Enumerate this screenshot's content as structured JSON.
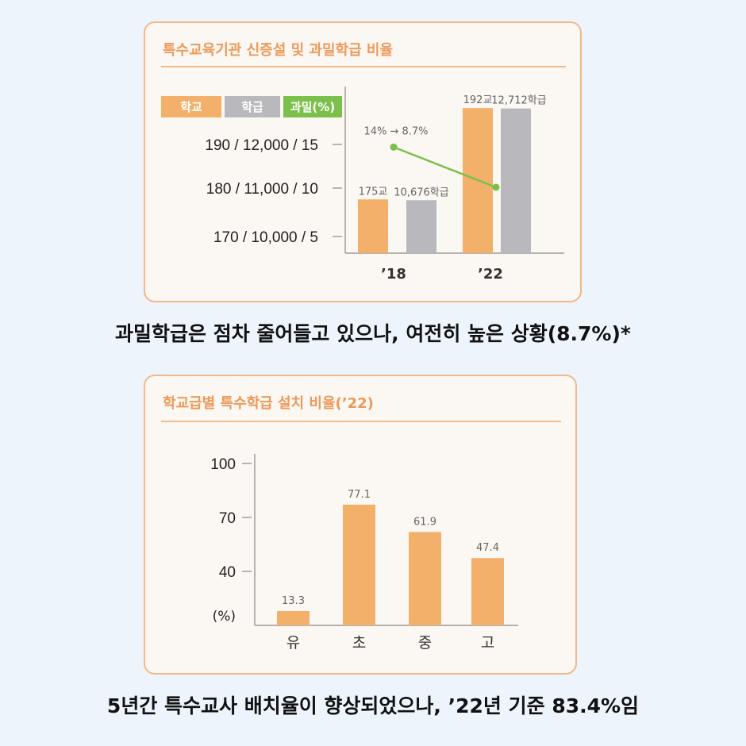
{
  "colors": {
    "school": "#f2b06a",
    "class": "#b9b9bd",
    "ratio": "#7cc04c",
    "axis": "#8a8a8a",
    "label": "#666666"
  },
  "caption_top": "과밀학급은 점차 줄어들고 있으나, 여전히 높은 상황(8.7%)*",
  "caption_bottom": "5년간  특수교사 배치율이 향상되었으나, ’22년 기준 83.4%임",
  "chart_data": [
    {
      "type": "bar",
      "title": "특수교육기관 신증설 및 과밀학급 비율",
      "legend": [
        "학교",
        "학급",
        "과밀(%)"
      ],
      "legend_position": "top-left",
      "categories": [
        "’18",
        "’22"
      ],
      "y_ticks": [
        "190 / 12,000 / 15",
        "180 / 11,000 / 10",
        "170 / 10,000 / 5"
      ],
      "series": [
        {
          "name": "학교",
          "type": "bar",
          "values": [
            175,
            192
          ],
          "labels": [
            "175교",
            "192교"
          ],
          "ylim": [
            165,
            196
          ]
        },
        {
          "name": "학급",
          "type": "bar",
          "values": [
            10676,
            12712
          ],
          "labels": [
            "10,676학급",
            "12,712학급"
          ],
          "ylim": [
            9500,
            13200
          ]
        },
        {
          "name": "과밀(%)",
          "type": "line",
          "values": [
            14,
            8.7
          ],
          "ylim": [
            0,
            22
          ]
        }
      ],
      "annotation": "14% → 8.7%"
    },
    {
      "type": "bar",
      "title": "학교급별 특수학급 설치 비율(’22)",
      "ylabel": "(%)",
      "categories": [
        "유",
        "초",
        "중",
        "고"
      ],
      "values": [
        13.3,
        77.1,
        61.9,
        47.4
      ],
      "y_ticks": [
        100,
        70,
        40
      ],
      "ylim": [
        0,
        100
      ]
    }
  ]
}
